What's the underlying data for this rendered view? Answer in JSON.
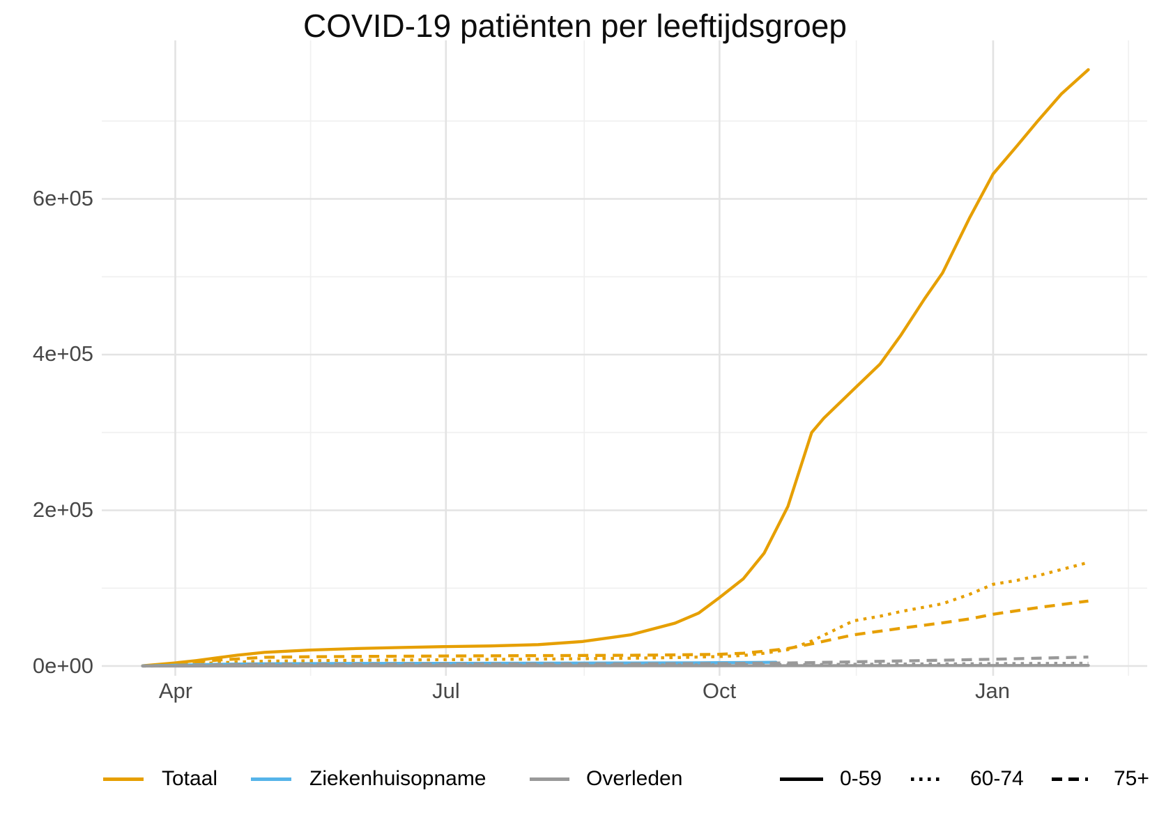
{
  "title": "COVID-19 patiënten per leeftijdsgroep",
  "colors": {
    "totaal": "#E69F00",
    "ziekenhuisopname": "#56B4E9",
    "overleden": "#999999",
    "linetype_key": "#000000"
  },
  "legend": {
    "color_items": [
      {
        "label": "Totaal",
        "color": "#E69F00"
      },
      {
        "label": "Ziekenhuisopname",
        "color": "#56B4E9"
      },
      {
        "label": "Overleden",
        "color": "#999999"
      }
    ],
    "linetype_items": [
      {
        "label": "0-59",
        "linetype": "solid"
      },
      {
        "label": "60-74",
        "linetype": "dotted"
      },
      {
        "label": "75+",
        "linetype": "dashed"
      }
    ]
  },
  "chart_data": {
    "type": "line",
    "title": "COVID-19 patiënten per leeftijdsgroep",
    "xlabel": "",
    "ylabel": "",
    "x_unit": "days since 2020-04-01",
    "x_range_days": [
      -11,
      307
    ],
    "ylim": [
      0,
      800000
    ],
    "grid": true,
    "legend_position": "bottom",
    "x_ticks": [
      {
        "label": "Apr",
        "day": 0
      },
      {
        "label": "Jul",
        "day": 91
      },
      {
        "label": "Oct",
        "day": 183
      },
      {
        "label": "Jan",
        "day": 275
      }
    ],
    "x_minor_days": [
      45.5,
      137.5,
      229,
      320.5
    ],
    "y_ticks": [
      {
        "label": "0e+00",
        "value": 0
      },
      {
        "label": "2e+05",
        "value": 200000
      },
      {
        "label": "4e+05",
        "value": 400000
      },
      {
        "label": "6e+05",
        "value": 600000
      }
    ],
    "y_minor_values": [
      100000,
      300000,
      500000,
      700000
    ],
    "series": [
      {
        "name": "totaal-0-59",
        "group": "Totaal",
        "age_group": "0-59",
        "color": "#E69F00",
        "linetype": "solid",
        "points": [
          [
            -11,
            400
          ],
          [
            0,
            4000
          ],
          [
            7,
            7000
          ],
          [
            14,
            10500
          ],
          [
            21,
            14000
          ],
          [
            30,
            17500
          ],
          [
            45,
            20500
          ],
          [
            61,
            22500
          ],
          [
            75,
            23700
          ],
          [
            91,
            25000
          ],
          [
            106,
            25800
          ],
          [
            122,
            27500
          ],
          [
            137,
            31500
          ],
          [
            153,
            40000
          ],
          [
            168,
            55000
          ],
          [
            176,
            68000
          ],
          [
            183,
            88000
          ],
          [
            191,
            112000
          ],
          [
            198,
            145000
          ],
          [
            206,
            205000
          ],
          [
            214,
            300000
          ],
          [
            218,
            318000
          ],
          [
            228,
            355000
          ],
          [
            237,
            388000
          ],
          [
            244,
            425000
          ],
          [
            252,
            472000
          ],
          [
            258,
            505000
          ],
          [
            267,
            575000
          ],
          [
            275,
            632000
          ],
          [
            283,
            668000
          ],
          [
            290,
            700000
          ],
          [
            298,
            735000
          ],
          [
            307,
            766000
          ]
        ]
      },
      {
        "name": "totaal-60-74",
        "group": "Totaal",
        "age_group": "60-74",
        "color": "#E69F00",
        "linetype": "dotted",
        "points": [
          [
            -11,
            150
          ],
          [
            0,
            1600
          ],
          [
            14,
            4200
          ],
          [
            30,
            6200
          ],
          [
            45,
            6800
          ],
          [
            61,
            7300
          ],
          [
            91,
            8100
          ],
          [
            122,
            8900
          ],
          [
            153,
            10000
          ],
          [
            168,
            10800
          ],
          [
            183,
            12200
          ],
          [
            191,
            13500
          ],
          [
            198,
            16500
          ],
          [
            206,
            21000
          ],
          [
            214,
            32000
          ],
          [
            228,
            58000
          ],
          [
            237,
            64000
          ],
          [
            244,
            70000
          ],
          [
            258,
            80000
          ],
          [
            267,
            92000
          ],
          [
            275,
            105000
          ],
          [
            283,
            110000
          ],
          [
            290,
            116000
          ],
          [
            298,
            124000
          ],
          [
            307,
            133000
          ]
        ]
      },
      {
        "name": "totaal-75plus",
        "group": "Totaal",
        "age_group": "75+",
        "color": "#E69F00",
        "linetype": "dashed",
        "points": [
          [
            -11,
            250
          ],
          [
            0,
            2600
          ],
          [
            14,
            7500
          ],
          [
            30,
            11200
          ],
          [
            45,
            11900
          ],
          [
            61,
            12300
          ],
          [
            91,
            12900
          ],
          [
            122,
            13300
          ],
          [
            153,
            13800
          ],
          [
            168,
            14300
          ],
          [
            183,
            15000
          ],
          [
            191,
            16500
          ],
          [
            198,
            19000
          ],
          [
            206,
            22500
          ],
          [
            214,
            28500
          ],
          [
            228,
            40000
          ],
          [
            244,
            48500
          ],
          [
            258,
            55500
          ],
          [
            267,
            60500
          ],
          [
            275,
            66500
          ],
          [
            290,
            75000
          ],
          [
            307,
            83500
          ]
        ]
      },
      {
        "name": "ziekenhuisopname-0-59",
        "group": "Ziekenhuisopname",
        "age_group": "0-59",
        "color": "#56B4E9",
        "linetype": "solid",
        "points": [
          [
            -11,
            80
          ],
          [
            0,
            1000
          ],
          [
            14,
            2200
          ],
          [
            30,
            2900
          ],
          [
            61,
            3300
          ],
          [
            91,
            3500
          ],
          [
            122,
            3700
          ],
          [
            153,
            3900
          ],
          [
            176,
            4100
          ],
          [
            183,
            4300
          ],
          [
            195,
            4600
          ],
          [
            202,
            4800
          ]
        ]
      },
      {
        "name": "ziekenhuisopname-60-74",
        "group": "Ziekenhuisopname",
        "age_group": "60-74",
        "color": "#56B4E9",
        "linetype": "dotted",
        "points": [
          [
            -11,
            60
          ],
          [
            0,
            800
          ],
          [
            14,
            1900
          ],
          [
            30,
            2600
          ],
          [
            61,
            3000
          ],
          [
            91,
            3200
          ],
          [
            122,
            3300
          ],
          [
            153,
            3500
          ],
          [
            183,
            3900
          ],
          [
            202,
            4300
          ]
        ]
      },
      {
        "name": "ziekenhuisopname-75plus",
        "group": "Ziekenhuisopname",
        "age_group": "75+",
        "color": "#56B4E9",
        "linetype": "dashed",
        "points": [
          [
            -11,
            50
          ],
          [
            0,
            700
          ],
          [
            14,
            1700
          ],
          [
            30,
            2300
          ],
          [
            61,
            2700
          ],
          [
            91,
            2900
          ],
          [
            122,
            3000
          ],
          [
            153,
            3200
          ],
          [
            183,
            3500
          ],
          [
            202,
            3900
          ]
        ]
      },
      {
        "name": "overleden-0-59",
        "group": "Overleden",
        "age_group": "0-59",
        "color": "#999999",
        "linetype": "solid",
        "points": [
          [
            -11,
            10
          ],
          [
            30,
            200
          ],
          [
            91,
            300
          ],
          [
            183,
            400
          ],
          [
            244,
            550
          ],
          [
            307,
            700
          ]
        ]
      },
      {
        "name": "overleden-60-74",
        "group": "Overleden",
        "age_group": "60-74",
        "color": "#999999",
        "linetype": "dotted",
        "points": [
          [
            -11,
            20
          ],
          [
            14,
            600
          ],
          [
            30,
            950
          ],
          [
            91,
            1150
          ],
          [
            153,
            1300
          ],
          [
            183,
            1500
          ],
          [
            206,
            1800
          ],
          [
            228,
            2200
          ],
          [
            244,
            2500
          ],
          [
            267,
            2900
          ],
          [
            275,
            3050
          ],
          [
            290,
            3300
          ],
          [
            307,
            3600
          ]
        ]
      },
      {
        "name": "overleden-75plus",
        "group": "Overleden",
        "age_group": "75+",
        "color": "#999999",
        "linetype": "dashed",
        "points": [
          [
            -11,
            30
          ],
          [
            14,
            1400
          ],
          [
            30,
            2100
          ],
          [
            91,
            2500
          ],
          [
            153,
            2800
          ],
          [
            183,
            3100
          ],
          [
            206,
            3900
          ],
          [
            214,
            4400
          ],
          [
            228,
            5400
          ],
          [
            244,
            6500
          ],
          [
            258,
            7400
          ],
          [
            267,
            8100
          ],
          [
            275,
            8700
          ],
          [
            290,
            10000
          ],
          [
            307,
            11500
          ]
        ]
      }
    ]
  }
}
